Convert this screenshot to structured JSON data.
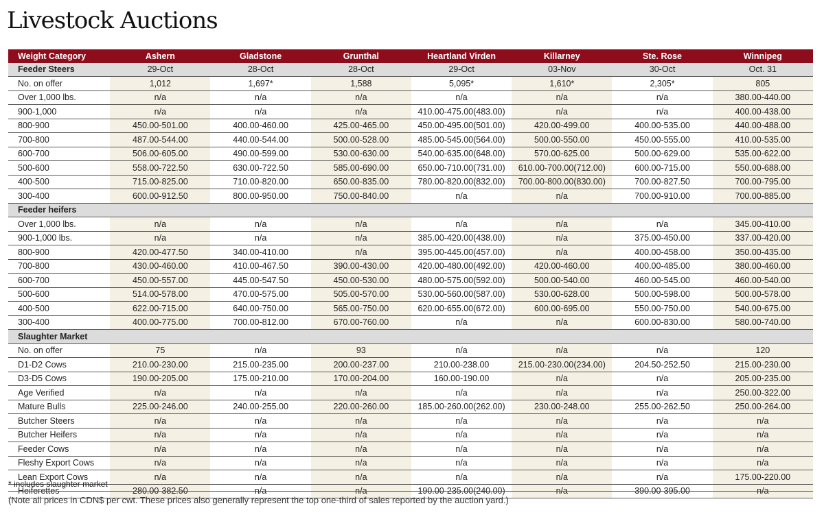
{
  "title": "Livestock Auctions",
  "columns": [
    "Weight Category",
    "Ashern",
    "Gladstone",
    "Grunthal",
    "Heartland Virden",
    "Killarney",
    "Ste. Rose",
    "Winnipeg"
  ],
  "sections": [
    {
      "label": "Feeder Steers",
      "dates": [
        "29-Oct",
        "28-Oct",
        "28-Oct",
        "29-Oct",
        "03-Nov",
        "30-Oct",
        "Oct. 31"
      ],
      "rows": [
        [
          "No. on offer",
          "1,012",
          "1,697*",
          "1,588",
          "5,095*",
          "1,610*",
          "2,305*",
          "805"
        ],
        [
          "Over 1,000 lbs.",
          "n/a",
          "n/a",
          "n/a",
          "n/a",
          "n/a",
          "n/a",
          "380.00-440.00"
        ],
        [
          "900-1,000",
          "n/a",
          "n/a",
          "n/a",
          "410.00-475.00(483.00)",
          "n/a",
          "n/a",
          "400.00-438.00"
        ],
        [
          "800-900",
          "450.00-501.00",
          "400.00-460.00",
          "425.00-465.00",
          "450.00-495.00(501.00)",
          "420.00-499.00",
          "400.00-535.00",
          "440.00-488.00"
        ],
        [
          "700-800",
          "487.00-544.00",
          "440.00-544.00",
          "500.00-528.00",
          "485.00-545.00(564.00)",
          "500.00-550.00",
          "450.00-555.00",
          "410.00-535.00"
        ],
        [
          "600-700",
          "506.00-605.00",
          "490.00-599.00",
          "530.00-630.00",
          "540.00-635.00(648.00)",
          "570.00-625.00",
          "500.00-629.00",
          "535.00-622.00"
        ],
        [
          "500-600",
          "558.00-722.50",
          "630.00-722.50",
          "585.00-690.00",
          "650.00-710.00(731.00)",
          "610.00-700.00(712.00)",
          "600.00-715.00",
          "550.00-688.00"
        ],
        [
          "400-500",
          "715.00-825.00",
          "710.00-820.00",
          "650.00-835.00",
          "780.00-820.00(832.00)",
          "700.00-800.00(830.00)",
          "700.00-827.50",
          "700.00-795.00"
        ],
        [
          "300-400",
          "600.00-912.50",
          "800.00-950.00",
          "750.00-840.00",
          "n/a",
          "n/a",
          "700.00-910.00",
          "700.00-885.00"
        ]
      ]
    },
    {
      "label": "Feeder heifers",
      "dates": [
        "",
        "",
        "",
        "",
        "",
        "",
        ""
      ],
      "rows": [
        [
          "Over 1,000 lbs.",
          "n/a",
          "n/a",
          "n/a",
          "n/a",
          "n/a",
          "n/a",
          "345.00-410.00"
        ],
        [
          "900-1,000 lbs.",
          "n/a",
          "n/a",
          "n/a",
          "385.00-420.00(438.00)",
          "n/a",
          "375.00-450.00",
          "337.00-420.00"
        ],
        [
          "800-900",
          "420.00-477.50",
          "340.00-410.00",
          "n/a",
          "395.00-445.00(457.00)",
          "n/a",
          "400.00-458.00",
          "350.00-435.00"
        ],
        [
          "700-800",
          "430.00-460.00",
          "410.00-467.50",
          "390.00-430.00",
          "420.00-480.00(492.00)",
          "420.00-460.00",
          "400.00-485.00",
          "380.00-460.00"
        ],
        [
          "600-700",
          "450.00-557.00",
          "445.00-547.50",
          "450.00-530.00",
          "480.00-575.00(592.00)",
          "500.00-540.00",
          "460.00-545.00",
          "460.00-540.00"
        ],
        [
          "500-600",
          "514.00-578.00",
          "470.00-575.00",
          "505.00-570.00",
          "530.00-560.00(587.00)",
          "530.00-628.00",
          "500.00-598.00",
          "500.00-578.00"
        ],
        [
          "400-500",
          "622.00-715.00",
          "640.00-750.00",
          "565.00-750.00",
          "620.00-655.00(672.00)",
          "600.00-695.00",
          "550.00-750.00",
          "540.00-675.00"
        ],
        [
          "300-400",
          "400.00-775.00",
          "700.00-812.00",
          "670.00-760.00",
          "n/a",
          "n/a",
          "600.00-830.00",
          "580.00-740.00"
        ]
      ]
    },
    {
      "label": "Slaughter Market",
      "dates": [
        "",
        "",
        "",
        "",
        "",
        "",
        ""
      ],
      "rows": [
        [
          "No. on offer",
          "75",
          "n/a",
          "93",
          "n/a",
          "n/a",
          "n/a",
          "120"
        ],
        [
          "D1-D2 Cows",
          "210.00-230.00",
          "215.00-235.00",
          "200.00-237.00",
          "210.00-238.00",
          "215.00-230.00(234.00)",
          "204.50-252.50",
          "215.00-230.00"
        ],
        [
          "D3-D5 Cows",
          "190.00-205.00",
          "175.00-210.00",
          "170.00-204.00",
          "160.00-190.00",
          "n/a",
          "n/a",
          "205.00-235.00"
        ],
        [
          "Age Verified",
          "n/a",
          "n/a",
          "n/a",
          "n/a",
          "n/a",
          "n/a",
          "250.00-322.00"
        ],
        [
          "Mature Bulls",
          "225.00-246.00",
          "240.00-255.00",
          "220.00-260.00",
          "185.00-260.00(262.00)",
          "230.00-248.00",
          "255.00-262.50",
          "250.00-264.00"
        ],
        [
          "Butcher Steers",
          "n/a",
          "n/a",
          "n/a",
          "n/a",
          "n/a",
          "n/a",
          "n/a"
        ],
        [
          "Butcher Heifers",
          "n/a",
          "n/a",
          "n/a",
          "n/a",
          "n/a",
          "n/a",
          "n/a"
        ],
        [
          "Feeder Cows",
          "n/a",
          "n/a",
          "n/a",
          "n/a",
          "n/a",
          "n/a",
          "n/a"
        ],
        [
          "Fleshy Export Cows",
          "n/a",
          "n/a",
          "n/a",
          "n/a",
          "n/a",
          "n/a",
          "n/a"
        ],
        [
          "Lean Export Cows",
          "n/a",
          "n/a",
          "n/a",
          "n/a",
          "n/a",
          "n/a",
          "175.00-220.00"
        ],
        [
          "Heiferettes",
          "280.00-382.50",
          "n/a",
          "n/a",
          "190.00-235.00(240.00)",
          "n/a",
          "390.00-395.00",
          "n/a"
        ]
      ]
    }
  ],
  "footnote": "* includes slaughter market",
  "note": "(Note all prices in CDN$ per cwt. These prices also generally represent the top one-third of sales reported by the auction yard.)",
  "colors": {
    "header": "#8d0d1c",
    "section": "#dcdcdc",
    "shade": "#f4f0e4"
  }
}
